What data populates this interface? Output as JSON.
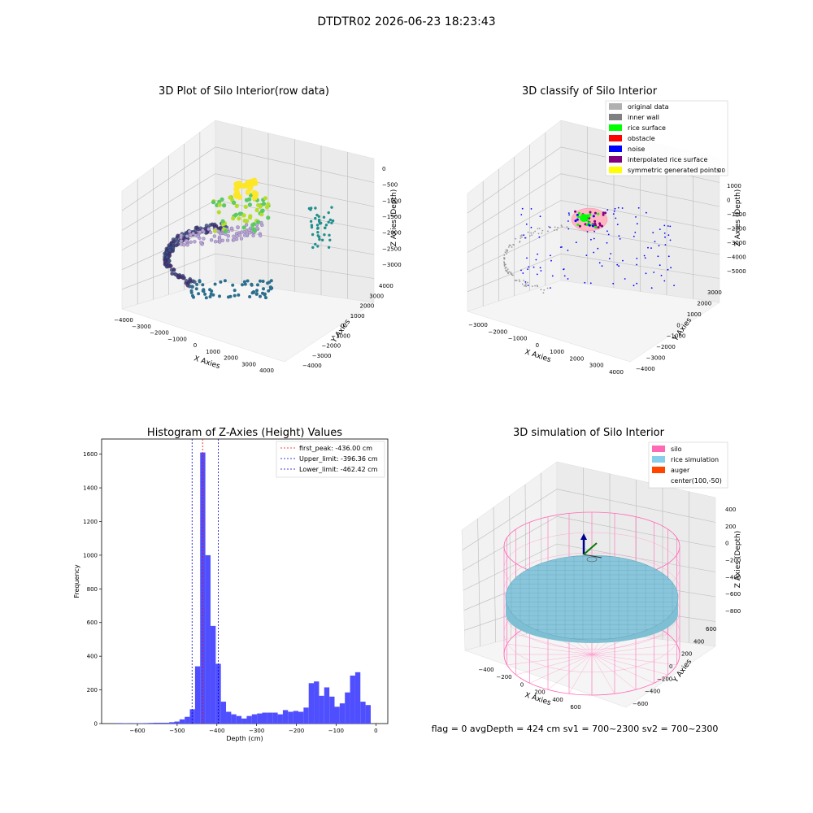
{
  "suptitle": "DTDTR02 2026-06-23 18:23:43",
  "chart_data": [
    {
      "type": "scatter",
      "title": "3D Plot of Silo Interior(row data)",
      "xlabel": "X Axies",
      "ylabel": "Y Axies",
      "zlabel": "Z Axies (Depth)",
      "xticks": [
        "−4000",
        "−3000",
        "−2000",
        "−1000",
        "0",
        "1000",
        "2000",
        "3000",
        "4000"
      ],
      "yticks": [
        "−4000",
        "−3000",
        "−2000",
        "−1000",
        "0",
        "1000",
        "2000",
        "3000",
        "4000"
      ],
      "zticks": [
        "0",
        "−500",
        "−1000",
        "−1500",
        "−2000",
        "−2500",
        "−3000"
      ],
      "colormap": "viridis"
    },
    {
      "type": "scatter",
      "title": "3D classify of Silo Interior",
      "xlabel": "X Axies",
      "ylabel": "Y Axies",
      "zlabel": "Z Axies (Depth)",
      "xticks": [
        "−3000",
        "−2000",
        "−1000",
        "0",
        "1000",
        "2000",
        "3000",
        "4000"
      ],
      "yticks": [
        "−4000",
        "−3000",
        "−2000",
        "−1000",
        "0",
        "1000",
        "2000",
        "3000"
      ],
      "zticks": [
        "1000",
        "0",
        "−1000",
        "−2000",
        "−3000",
        "−4000",
        "−5000"
      ],
      "legend": [
        {
          "label": "original data",
          "color": "#b0b0b0"
        },
        {
          "label": "inner wall",
          "color": "#808080"
        },
        {
          "label": "rice surface",
          "color": "#00ff00"
        },
        {
          "label": "obstacle",
          "color": "#ff0000"
        },
        {
          "label": "noise",
          "color": "#0000ff"
        },
        {
          "label": "interpolated rice surface",
          "color": "#800080"
        },
        {
          "label": "symmetric generated points",
          "color": "#ffff00"
        }
      ],
      "legend_extra": "00"
    },
    {
      "type": "bar",
      "title": "Histogram of Z-Axies (Height) Values",
      "xlabel": "Depth (cm)",
      "ylabel": "Frequency",
      "xlim": [
        -690,
        30
      ],
      "ylim": [
        0,
        1690
      ],
      "xticks": [
        -600,
        -500,
        -400,
        -300,
        -200,
        -100,
        0
      ],
      "yticks": [
        0,
        200,
        400,
        600,
        800,
        1000,
        1200,
        1400,
        1600
      ],
      "bin_width": 13,
      "bins": [
        [
          -650,
          3
        ],
        [
          -637,
          2
        ],
        [
          -624,
          1
        ],
        [
          -611,
          2
        ],
        [
          -598,
          2
        ],
        [
          -585,
          3
        ],
        [
          -572,
          4
        ],
        [
          -559,
          5
        ],
        [
          -546,
          5
        ],
        [
          -533,
          5
        ],
        [
          -520,
          8
        ],
        [
          -507,
          12
        ],
        [
          -494,
          25
        ],
        [
          -481,
          40
        ],
        [
          -468,
          85
        ],
        [
          -455,
          340
        ],
        [
          -442,
          1610
        ],
        [
          -429,
          1000
        ],
        [
          -416,
          580
        ],
        [
          -403,
          355
        ],
        [
          -390,
          130
        ],
        [
          -377,
          70
        ],
        [
          -364,
          55
        ],
        [
          -351,
          45
        ],
        [
          -338,
          30
        ],
        [
          -325,
          45
        ],
        [
          -312,
          55
        ],
        [
          -299,
          60
        ],
        [
          -286,
          65
        ],
        [
          -273,
          65
        ],
        [
          -260,
          65
        ],
        [
          -247,
          55
        ],
        [
          -234,
          80
        ],
        [
          -221,
          70
        ],
        [
          -208,
          75
        ],
        [
          -195,
          70
        ],
        [
          -182,
          95
        ],
        [
          -169,
          240
        ],
        [
          -156,
          250
        ],
        [
          -143,
          165
        ],
        [
          -130,
          215
        ],
        [
          -117,
          160
        ],
        [
          -104,
          100
        ],
        [
          -91,
          120
        ],
        [
          -78,
          185
        ],
        [
          -65,
          285
        ],
        [
          -52,
          305
        ],
        [
          -39,
          130
        ],
        [
          -26,
          110
        ]
      ],
      "bar_color": "#4f4fff",
      "vlines": [
        {
          "x": -436.0,
          "label": "first_peak: -436.00 cm",
          "color": "#ff0000"
        },
        {
          "x": -396.36,
          "label": "Upper_limit: -396.36 cm",
          "color": "#0000cc"
        },
        {
          "x": -462.42,
          "label": "Lower_limit: -462.42 cm",
          "color": "#0000cc"
        }
      ]
    },
    {
      "type": "scatter",
      "title": "3D simulation of Silo Interior",
      "xlabel": "X Axies",
      "ylabel": "Y Axies",
      "zlabel": "Z Axies (Depth)",
      "xticks": [
        "−400",
        "−200",
        "0",
        "200",
        "400",
        "600"
      ],
      "yticks": [
        "−600",
        "−400",
        "−200",
        "0",
        "200",
        "400",
        "600"
      ],
      "zticks": [
        "400",
        "200",
        "0",
        "−200",
        "−400",
        "−600",
        "−800"
      ],
      "legend": [
        {
          "label": "silo",
          "color": "#ff69b4"
        },
        {
          "label": "rice simulation",
          "color": "#87ceeb"
        },
        {
          "label": "auger",
          "color": "#ff4500"
        },
        {
          "label": "center(100,-50)",
          "color": ""
        }
      ],
      "status": "flag = 0     avgDepth = 424 cm  sv1 = 700~2300  sv2 = 700~2300"
    }
  ]
}
